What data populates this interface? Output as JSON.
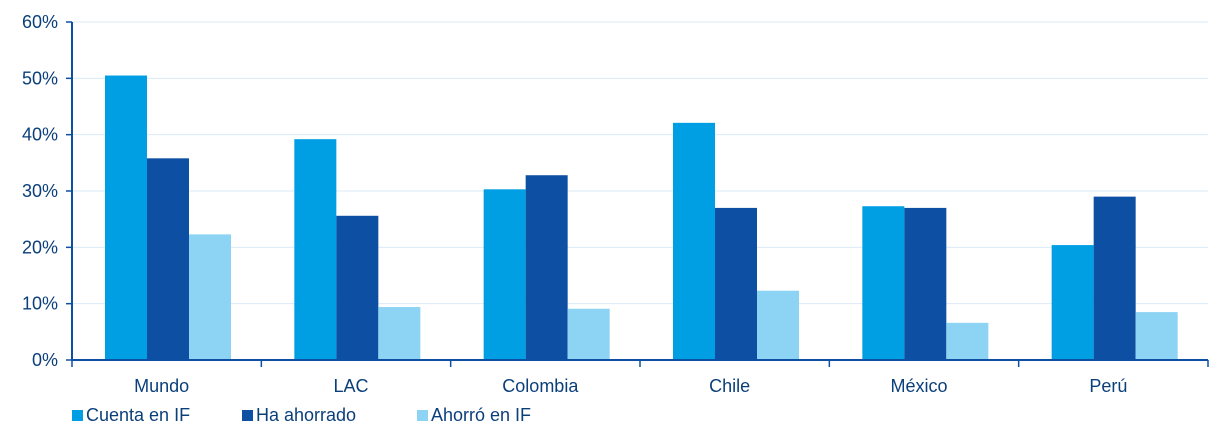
{
  "chart_data": {
    "type": "bar",
    "categories": [
      "Mundo",
      "LAC",
      "Colombia",
      "Chile",
      "México",
      "Perú"
    ],
    "series": [
      {
        "name": "Cuenta en IF",
        "color": "#009fe3",
        "values": [
          50.5,
          39.2,
          30.3,
          42.1,
          27.3,
          20.4
        ]
      },
      {
        "name": "Ha ahorrado",
        "color": "#0d4fa3",
        "values": [
          35.8,
          25.6,
          32.8,
          27.0,
          27.0,
          29.0
        ]
      },
      {
        "name": "Ahorró en IF",
        "color": "#8dd3f4",
        "values": [
          22.3,
          9.4,
          9.1,
          12.3,
          6.6,
          8.5
        ]
      }
    ],
    "ylim": [
      0,
      60
    ],
    "yticks": [
      0,
      10,
      20,
      30,
      40,
      50,
      60
    ],
    "ytick_labels": [
      "0%",
      "10%",
      "20%",
      "30%",
      "40%",
      "50%",
      "60%"
    ],
    "grid": true,
    "legend_position": "bottom-left",
    "axis_color": "#0d4fa3",
    "grid_color": "#dbe9f6",
    "text_color": "#0b3f7a"
  }
}
